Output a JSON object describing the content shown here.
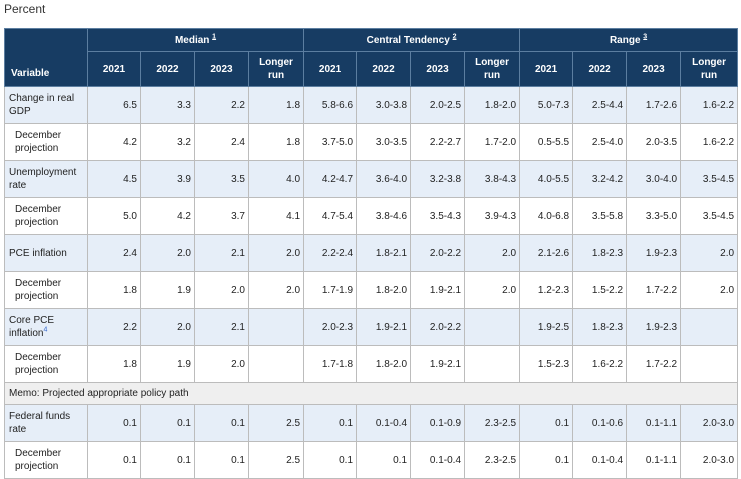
{
  "caption": "Percent",
  "header": {
    "variable": "Variable",
    "groups": [
      {
        "label": "Median",
        "footnote": "1"
      },
      {
        "label": "Central Tendency",
        "footnote": "2"
      },
      {
        "label": "Range",
        "footnote": "3"
      }
    ],
    "columns": [
      "2021",
      "2022",
      "2023",
      "Longer run"
    ]
  },
  "rows": [
    {
      "label": "Change in real GDP",
      "values": [
        "6.5",
        "3.3",
        "2.2",
        "1.8",
        "5.8-6.6",
        "3.0-3.8",
        "2.0-2.5",
        "1.8-2.0",
        "5.0-7.3",
        "2.5-4.4",
        "1.7-2.6",
        "1.6-2.2"
      ]
    },
    {
      "label": "December projection",
      "values": [
        "4.2",
        "3.2",
        "2.4",
        "1.8",
        "3.7-5.0",
        "3.0-3.5",
        "2.2-2.7",
        "1.7-2.0",
        "0.5-5.5",
        "2.5-4.0",
        "2.0-3.5",
        "1.6-2.2"
      ]
    },
    {
      "label": "Unemployment rate",
      "values": [
        "4.5",
        "3.9",
        "3.5",
        "4.0",
        "4.2-4.7",
        "3.6-4.0",
        "3.2-3.8",
        "3.8-4.3",
        "4.0-5.5",
        "3.2-4.2",
        "3.0-4.0",
        "3.5-4.5"
      ]
    },
    {
      "label": "December projection",
      "values": [
        "5.0",
        "4.2",
        "3.7",
        "4.1",
        "4.7-5.4",
        "3.8-4.6",
        "3.5-4.3",
        "3.9-4.3",
        "4.0-6.8",
        "3.5-5.8",
        "3.3-5.0",
        "3.5-4.5"
      ]
    },
    {
      "label": "PCE inflation",
      "values": [
        "2.4",
        "2.0",
        "2.1",
        "2.0",
        "2.2-2.4",
        "1.8-2.1",
        "2.0-2.2",
        "2.0",
        "2.1-2.6",
        "1.8-2.3",
        "1.9-2.3",
        "2.0"
      ]
    },
    {
      "label": "December projection",
      "values": [
        "1.8",
        "1.9",
        "2.0",
        "2.0",
        "1.7-1.9",
        "1.8-2.0",
        "1.9-2.1",
        "2.0",
        "1.2-2.3",
        "1.5-2.2",
        "1.7-2.2",
        "2.0"
      ]
    },
    {
      "label": "Core PCE inflation",
      "footnote": "4",
      "values": [
        "2.2",
        "2.0",
        "2.1",
        "",
        "2.0-2.3",
        "1.9-2.1",
        "2.0-2.2",
        "",
        "1.9-2.5",
        "1.8-2.3",
        "1.9-2.3",
        ""
      ]
    },
    {
      "label": "December projection",
      "values": [
        "1.8",
        "1.9",
        "2.0",
        "",
        "1.7-1.8",
        "1.8-2.0",
        "1.9-2.1",
        "",
        "1.5-2.3",
        "1.6-2.2",
        "1.7-2.2",
        ""
      ]
    }
  ],
  "memo": "Memo: Projected appropriate policy path",
  "policy_rows": [
    {
      "label": "Federal funds rate",
      "values": [
        "0.1",
        "0.1",
        "0.1",
        "2.5",
        "0.1",
        "0.1-0.4",
        "0.1-0.9",
        "2.3-2.5",
        "0.1",
        "0.1-0.6",
        "0.1-1.1",
        "2.0-3.0"
      ]
    },
    {
      "label": "December projection",
      "values": [
        "0.1",
        "0.1",
        "0.1",
        "2.5",
        "0.1",
        "0.1",
        "0.1-0.4",
        "2.3-2.5",
        "0.1",
        "0.1-0.4",
        "0.1-1.1",
        "2.0-3.0"
      ]
    }
  ]
}
